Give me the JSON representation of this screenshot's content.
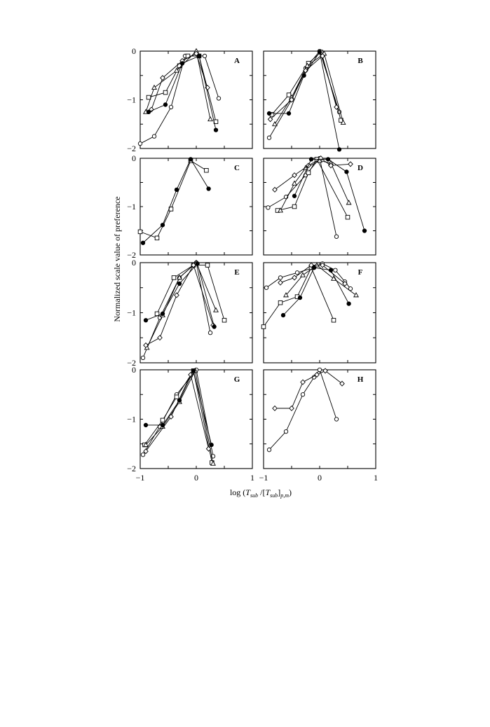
{
  "figure": {
    "ylabel": "Normalized scale value of preference",
    "xlabel": {
      "prefix": "log (",
      "t1": "T",
      "s1": "sub",
      "mid": " /[",
      "t2": "T",
      "s2": "sub",
      "close": "]",
      "s3": "p,m",
      "suffix": ")"
    },
    "x_tick_labels_left": [
      "−1",
      "0",
      "1"
    ],
    "x_tick_labels_right": [
      "−1",
      "0",
      "1"
    ],
    "y_tick_labels": [
      "0",
      "−1",
      "−2"
    ]
  },
  "chart_data": [
    {
      "panel": "A",
      "type": "line",
      "xlim": [
        -1,
        1
      ],
      "ylim": [
        -2,
        0
      ],
      "series": [
        {
          "marker": "circle-open",
          "x": [
            -1.0,
            -0.75,
            -0.45,
            -0.2,
            0.05,
            0.15,
            0.4
          ],
          "y": [
            -1.9,
            -1.75,
            -1.15,
            -0.1,
            -0.1,
            -0.1,
            -0.97
          ]
        },
        {
          "marker": "square-open",
          "x": [
            -0.85,
            -0.55,
            -0.3,
            -0.15,
            0.05,
            0.35
          ],
          "y": [
            -0.95,
            -0.85,
            -0.3,
            -0.1,
            -0.1,
            -1.45
          ]
        },
        {
          "marker": "triangle-open",
          "x": [
            -0.9,
            -0.75,
            -0.35,
            0.0,
            0.25
          ],
          "y": [
            -1.25,
            -0.75,
            -0.4,
            0.0,
            -1.4
          ]
        },
        {
          "marker": "diamond-open",
          "x": [
            -0.8,
            -0.6,
            -0.25,
            0.0,
            0.2
          ],
          "y": [
            -1.2,
            -0.55,
            -0.2,
            -0.05,
            -0.75
          ]
        },
        {
          "marker": "circle-filled",
          "x": [
            -0.85,
            -0.55,
            -0.25,
            0.05,
            0.35
          ],
          "y": [
            -1.25,
            -1.1,
            -0.25,
            -0.1,
            -1.62
          ]
        }
      ]
    },
    {
      "panel": "B",
      "type": "line",
      "xlim": [
        -1,
        1
      ],
      "ylim": [
        -2,
        0
      ],
      "series": [
        {
          "marker": "circle-open",
          "x": [
            -0.9,
            -0.5,
            -0.25,
            0.0,
            0.35
          ],
          "y": [
            -1.78,
            -1.0,
            -0.35,
            0.0,
            -1.25
          ]
        },
        {
          "marker": "square-open",
          "x": [
            -0.85,
            -0.55,
            -0.2,
            0.02,
            0.38
          ],
          "y": [
            -1.3,
            -0.9,
            -0.25,
            -0.02,
            -1.42
          ]
        },
        {
          "marker": "triangle-open",
          "x": [
            -0.8,
            -0.5,
            -0.22,
            0.08,
            0.42
          ],
          "y": [
            -1.5,
            -0.95,
            -0.3,
            -0.05,
            -1.47
          ]
        },
        {
          "marker": "diamond-open",
          "x": [
            -0.88,
            -0.5,
            -0.25,
            0.05,
            0.3
          ],
          "y": [
            -1.4,
            -1.0,
            -0.4,
            -0.1,
            -1.15
          ]
        },
        {
          "marker": "circle-filled",
          "x": [
            -0.9,
            -0.55,
            -0.28,
            0.0,
            0.35
          ],
          "y": [
            -1.28,
            -1.28,
            -0.5,
            -0.02,
            -2.02
          ]
        }
      ]
    },
    {
      "panel": "C",
      "type": "line",
      "xlim": [
        -1,
        1
      ],
      "ylim": [
        -2,
        0
      ],
      "series": [
        {
          "marker": "square-open",
          "x": [
            -1.0,
            -0.7,
            -0.45,
            -0.1,
            0.18
          ],
          "y": [
            -1.52,
            -1.65,
            -1.05,
            -0.05,
            -0.25
          ]
        },
        {
          "marker": "circle-filled",
          "x": [
            -0.95,
            -0.6,
            -0.35,
            -0.1,
            0.22
          ],
          "y": [
            -1.75,
            -1.38,
            -0.65,
            -0.02,
            -0.63
          ]
        }
      ]
    },
    {
      "panel": "D",
      "type": "line",
      "xlim": [
        -1,
        1
      ],
      "ylim": [
        -2,
        0
      ],
      "series": [
        {
          "marker": "circle-open",
          "x": [
            -0.92,
            -0.6,
            -0.25,
            0.0,
            0.3
          ],
          "y": [
            -1.02,
            -0.8,
            -0.35,
            0.0,
            -1.62
          ]
        },
        {
          "marker": "square-open",
          "x": [
            -0.75,
            -0.45,
            -0.2,
            -0.05,
            0.5
          ],
          "y": [
            -1.08,
            -1.0,
            -0.3,
            -0.02,
            -1.22
          ]
        },
        {
          "marker": "triangle-open",
          "x": [
            -0.7,
            -0.45,
            -0.25,
            0.0,
            0.2,
            0.52
          ],
          "y": [
            -1.08,
            -0.52,
            -0.2,
            -0.05,
            -0.1,
            -0.92
          ]
        },
        {
          "marker": "diamond-open",
          "x": [
            -0.8,
            -0.45,
            -0.2,
            0.02,
            0.2,
            0.55
          ],
          "y": [
            -0.65,
            -0.35,
            -0.15,
            0.0,
            -0.15,
            -0.12
          ]
        },
        {
          "marker": "circle-filled",
          "x": [
            -0.45,
            -0.15,
            0.15,
            0.48,
            0.8
          ],
          "y": [
            -0.78,
            -0.02,
            -0.02,
            -0.28,
            -1.5
          ]
        }
      ]
    },
    {
      "panel": "E",
      "type": "line",
      "xlim": [
        -1,
        1
      ],
      "ylim": [
        -2,
        0
      ],
      "series": [
        {
          "marker": "circle-open",
          "x": [
            -0.95,
            -0.65,
            -0.3,
            0.0,
            0.25
          ],
          "y": [
            -1.9,
            -1.1,
            -0.3,
            0.0,
            -1.4
          ]
        },
        {
          "marker": "square-open",
          "x": [
            -0.7,
            -0.4,
            -0.05,
            0.2,
            0.5
          ],
          "y": [
            -1.02,
            -0.3,
            -0.05,
            -0.05,
            -1.15
          ]
        },
        {
          "marker": "triangle-open",
          "x": [
            -0.88,
            -0.6,
            -0.3,
            0.0,
            0.35
          ],
          "y": [
            -1.7,
            -1.05,
            -0.3,
            0.0,
            -0.95
          ]
        },
        {
          "marker": "diamond-open",
          "x": [
            -0.9,
            -0.65,
            -0.35,
            -0.05,
            0.3
          ],
          "y": [
            -1.65,
            -1.5,
            -0.65,
            -0.05,
            -1.25
          ]
        },
        {
          "marker": "circle-filled",
          "x": [
            -0.9,
            -0.6,
            -0.3,
            0.02,
            0.32
          ],
          "y": [
            -1.15,
            -1.02,
            -0.42,
            -0.02,
            -1.28
          ]
        }
      ]
    },
    {
      "panel": "F",
      "type": "line",
      "xlim": [
        -1,
        1
      ],
      "ylim": [
        -2,
        0
      ],
      "series": [
        {
          "marker": "circle-open",
          "x": [
            -0.95,
            -0.7,
            -0.4,
            -0.1,
            0.05,
            0.28,
            0.45,
            0.55
          ],
          "y": [
            -0.5,
            -0.3,
            -0.2,
            -0.1,
            -0.02,
            -0.15,
            -0.38,
            -0.52
          ]
        },
        {
          "marker": "square-open",
          "x": [
            -1.0,
            -0.7,
            -0.4,
            -0.15,
            0.25
          ],
          "y": [
            -1.28,
            -0.8,
            -0.68,
            -0.1,
            -1.15
          ]
        },
        {
          "marker": "triangle-open",
          "x": [
            -0.6,
            -0.3,
            -0.05,
            0.25,
            0.65
          ],
          "y": [
            -0.65,
            -0.25,
            -0.05,
            -0.32,
            -0.65
          ]
        },
        {
          "marker": "diamond-open",
          "x": [
            -0.7,
            -0.45,
            -0.15,
            0.05,
            0.45
          ],
          "y": [
            -0.4,
            -0.3,
            -0.05,
            -0.05,
            -0.42
          ]
        },
        {
          "marker": "circle-filled",
          "x": [
            -0.65,
            -0.35,
            -0.1,
            0.2,
            0.52
          ],
          "y": [
            -1.05,
            -0.7,
            -0.1,
            -0.15,
            -0.82
          ]
        }
      ]
    },
    {
      "panel": "G",
      "type": "line",
      "xlim": [
        -1,
        1
      ],
      "ylim": [
        -2,
        0
      ],
      "series": [
        {
          "marker": "circle-open",
          "x": [
            -0.95,
            -0.65,
            -0.35,
            0.0,
            0.3
          ],
          "y": [
            -1.72,
            -1.15,
            -0.5,
            0.0,
            -1.75
          ]
        },
        {
          "marker": "square-open",
          "x": [
            -0.92,
            -0.6,
            -0.35,
            -0.05,
            0.28
          ],
          "y": [
            -1.52,
            -1.02,
            -0.55,
            -0.02,
            -1.88
          ]
        },
        {
          "marker": "triangle-open",
          "x": [
            -0.9,
            -0.6,
            -0.3,
            -0.02,
            0.3
          ],
          "y": [
            -1.52,
            -1.15,
            -0.65,
            -0.02,
            -1.9
          ]
        },
        {
          "marker": "diamond-open",
          "x": [
            -0.9,
            -0.45,
            -0.1,
            0.22
          ],
          "y": [
            -1.65,
            -0.95,
            -0.1,
            -1.6
          ]
        },
        {
          "marker": "circle-filled",
          "x": [
            -0.9,
            -0.6,
            -0.3,
            -0.05,
            0.27
          ],
          "y": [
            -1.12,
            -1.12,
            -0.62,
            -0.02,
            -1.52
          ]
        }
      ]
    },
    {
      "panel": "H",
      "type": "line",
      "xlim": [
        -1,
        1
      ],
      "ylim": [
        -2,
        0
      ],
      "series": [
        {
          "marker": "circle-open",
          "x": [
            -0.9,
            -0.6,
            -0.3,
            -0.1,
            0.0,
            0.3
          ],
          "y": [
            -1.62,
            -1.25,
            -0.5,
            -0.15,
            0.0,
            -1.0
          ]
        },
        {
          "marker": "diamond-open",
          "x": [
            -0.8,
            -0.5,
            -0.3,
            -0.05,
            0.1,
            0.4
          ],
          "y": [
            -0.78,
            -0.78,
            -0.25,
            -0.1,
            -0.02,
            -0.28
          ]
        }
      ]
    }
  ]
}
